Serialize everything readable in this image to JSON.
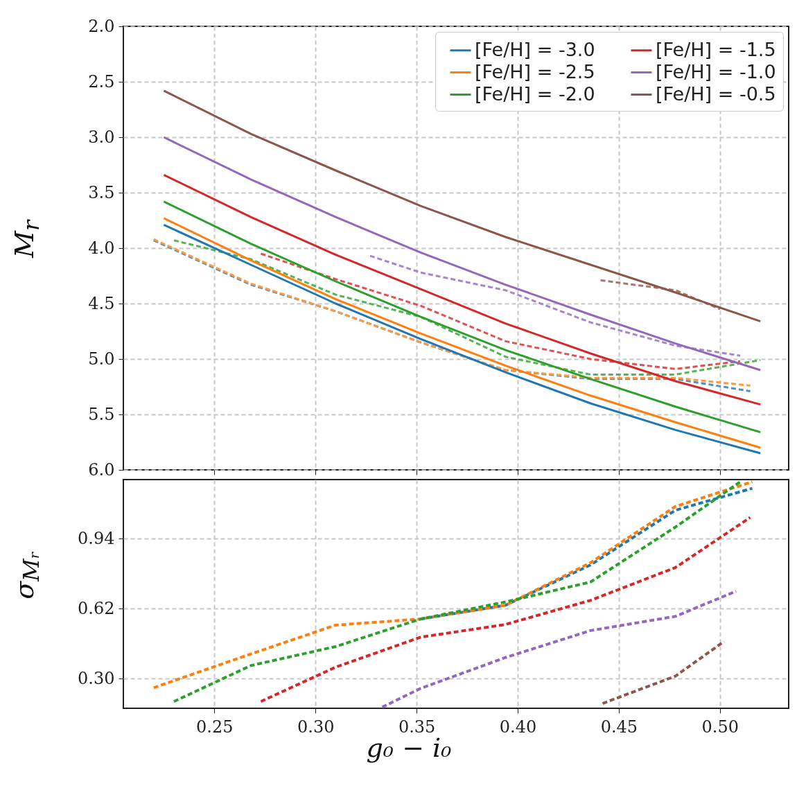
{
  "chart_data": [
    {
      "type": "line",
      "ylabel": "M$_{r}$",
      "legend": "top right",
      "grid": true,
      "tick_labels": "y",
      "xlim": [
        0.205,
        0.534
      ],
      "xticks": [
        0.25,
        0.3,
        0.35,
        0.4,
        0.45,
        0.5
      ],
      "ylim": [
        6,
        2
      ],
      "yticks": [
        {
          "value": 2,
          "label": "2.0"
        },
        2.5,
        {
          "value": 3,
          "label": "3.0"
        },
        3.5,
        {
          "value": 4,
          "label": "4.0"
        },
        4.5,
        {
          "value": 5,
          "label": "5.0"
        },
        5.5,
        {
          "value": 6,
          "label": "6.0"
        }
      ],
      "series": [
        {
          "color": "#4c92c3",
          "line_style": "dashed",
          "x": [
            0.22,
            0.268,
            0.31,
            0.352,
            0.394,
            0.436,
            0.478,
            0.515
          ],
          "values": [
            3.93,
            4.33,
            4.57,
            4.85,
            5.1,
            5.18,
            5.18,
            5.29
          ]
        },
        {
          "color": "#ff993e",
          "line_style": "dashed",
          "x": [
            0.22,
            0.268,
            0.31,
            0.352,
            0.394,
            0.436,
            0.478,
            0.515
          ],
          "values": [
            3.92,
            4.32,
            4.57,
            4.85,
            5.1,
            5.17,
            5.17,
            5.24
          ]
        },
        {
          "color": "#56b356",
          "line_style": "dashed",
          "x": [
            0.23,
            0.268,
            0.31,
            0.352,
            0.394,
            0.436,
            0.478,
            0.52
          ],
          "values": [
            3.93,
            4.1,
            4.42,
            4.62,
            4.98,
            5.14,
            5.14,
            5.01
          ]
        },
        {
          "color": "#de5253",
          "line_style": "dashed",
          "x": [
            0.273,
            0.31,
            0.352,
            0.394,
            0.436,
            0.478,
            0.51
          ],
          "values": [
            4.05,
            4.28,
            4.52,
            4.84,
            5.0,
            5.09,
            5.02
          ]
        },
        {
          "color": "#a985ca",
          "line_style": "dashed",
          "x": [
            0.327,
            0.352,
            0.394,
            0.436,
            0.478,
            0.51
          ],
          "values": [
            4.07,
            4.22,
            4.38,
            4.67,
            4.88,
            4.97
          ]
        },
        {
          "color": "#a3786f",
          "line_style": "dashed",
          "x": [
            0.441,
            0.478,
            0.5
          ],
          "values": [
            4.29,
            4.38,
            4.55
          ]
        },
        {
          "name": "[Fe/H] = -3.0",
          "color": "#1f77b4",
          "line_style": "solid",
          "x": [
            0.225,
            0.268,
            0.31,
            0.352,
            0.394,
            0.436,
            0.478,
            0.52
          ],
          "values": [
            3.79,
            4.15,
            4.5,
            4.82,
            5.12,
            5.4,
            5.64,
            5.85
          ]
        },
        {
          "name": "[Fe/H] = -2.5",
          "color": "#ff7f0e",
          "line_style": "solid",
          "x": [
            0.225,
            0.268,
            0.31,
            0.352,
            0.394,
            0.436,
            0.478,
            0.52
          ],
          "values": [
            3.73,
            4.11,
            4.46,
            4.77,
            5.06,
            5.33,
            5.57,
            5.8
          ]
        },
        {
          "name": "[Fe/H] = -2.0",
          "color": "#2ca02c",
          "line_style": "solid",
          "x": [
            0.225,
            0.268,
            0.31,
            0.352,
            0.394,
            0.436,
            0.478,
            0.52
          ],
          "values": [
            3.58,
            3.96,
            4.3,
            4.62,
            4.92,
            5.18,
            5.43,
            5.66
          ]
        },
        {
          "name": "[Fe/H] = -1.5",
          "color": "#d62728",
          "line_style": "solid",
          "x": [
            0.225,
            0.268,
            0.31,
            0.352,
            0.394,
            0.436,
            0.478,
            0.52
          ],
          "values": [
            3.34,
            3.72,
            4.06,
            4.37,
            4.68,
            4.95,
            5.2,
            5.41
          ]
        },
        {
          "name": "[Fe/H] = -1.0",
          "color": "#9467bd",
          "line_style": "solid",
          "x": [
            0.225,
            0.268,
            0.31,
            0.352,
            0.394,
            0.436,
            0.478,
            0.52
          ],
          "values": [
            3.0,
            3.38,
            3.72,
            4.04,
            4.33,
            4.6,
            4.86,
            5.1
          ]
        },
        {
          "name": "[Fe/H] = -0.5",
          "color": "#8c564b",
          "line_style": "solid",
          "x": [
            0.225,
            0.268,
            0.31,
            0.352,
            0.394,
            0.436,
            0.478,
            0.52
          ],
          "values": [
            2.58,
            2.97,
            3.3,
            3.62,
            3.9,
            4.15,
            4.4,
            4.66
          ]
        }
      ]
    },
    {
      "type": "line",
      "xlabel": "g₀ − i₀",
      "ylabel": "σ$_{Mᵣ}$",
      "grid": true,
      "xlim": [
        0.205,
        0.534
      ],
      "xticks": [
        {
          "value": 0.25,
          "label": "0.25"
        },
        {
          "value": 0.3,
          "label": "0.30"
        },
        {
          "value": 0.35,
          "label": "0.35"
        },
        {
          "value": 0.4,
          "label": "0.40"
        },
        {
          "value": 0.45,
          "label": "0.45"
        },
        {
          "value": 0.5,
          "label": "0.50"
        }
      ],
      "ylim": [
        0.165,
        1.21
      ],
      "yticks": [
        {
          "value": 0.3,
          "label": "0.30"
        },
        0.62,
        0.94
      ],
      "series": [
        {
          "color": "#1f77b4",
          "line_style": "dashed",
          "x": [
            0.352,
            0.394,
            0.436,
            0.478,
            0.516
          ],
          "values": [
            0.573,
            0.636,
            0.82,
            1.07,
            1.17
          ]
        },
        {
          "color": "#ff7f0e",
          "line_style": "dashed",
          "x": [
            0.22,
            0.268,
            0.31,
            0.352,
            0.394,
            0.436,
            0.478,
            0.516
          ],
          "values": [
            0.259,
            0.413,
            0.545,
            0.573,
            0.636,
            0.83,
            1.087,
            1.2
          ]
        },
        {
          "color": "#2ca02c",
          "line_style": "dashed",
          "x": [
            0.23,
            0.268,
            0.31,
            0.352,
            0.394,
            0.436,
            0.478,
            0.51
          ],
          "values": [
            0.196,
            0.36,
            0.447,
            0.573,
            0.651,
            0.742,
            0.993,
            1.2
          ]
        },
        {
          "color": "#d62728",
          "line_style": "dashed",
          "x": [
            0.273,
            0.31,
            0.352,
            0.394,
            0.436,
            0.478,
            0.515
          ],
          "values": [
            0.196,
            0.353,
            0.49,
            0.548,
            0.658,
            0.808,
            1.037
          ]
        },
        {
          "color": "#9467bd",
          "line_style": "dashed",
          "x": [
            0.333,
            0.352,
            0.394,
            0.436,
            0.478,
            0.508
          ],
          "values": [
            0.17,
            0.256,
            0.397,
            0.52,
            0.585,
            0.7
          ]
        },
        {
          "color": "#8c564b",
          "line_style": "dashed",
          "x": [
            0.442,
            0.478,
            0.502
          ],
          "values": [
            0.187,
            0.312,
            0.47
          ]
        }
      ]
    }
  ]
}
